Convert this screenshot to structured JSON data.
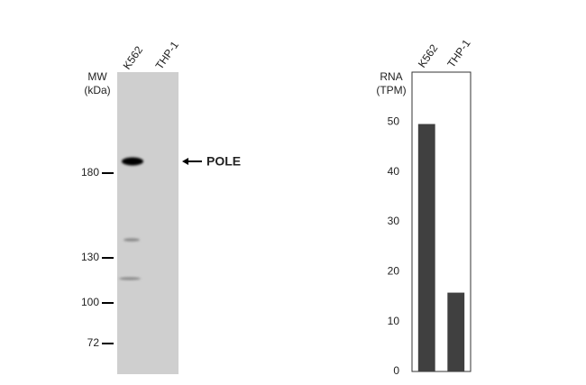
{
  "blot": {
    "mw_label": "MW",
    "mw_unit": "(kDa)",
    "lanes": [
      "K562",
      "THP-1"
    ],
    "markers": [
      180,
      130,
      100,
      72
    ],
    "target": "POLE"
  },
  "chart_data": {
    "type": "bar",
    "y_label": [
      "RNA",
      "(TPM)"
    ],
    "categories": [
      "K562",
      "THP-1"
    ],
    "values": [
      49.6,
      15.8
    ],
    "color": "#404040",
    "ylim": [
      0,
      60
    ],
    "yticks": [
      0,
      10,
      20,
      30,
      40,
      50
    ]
  }
}
